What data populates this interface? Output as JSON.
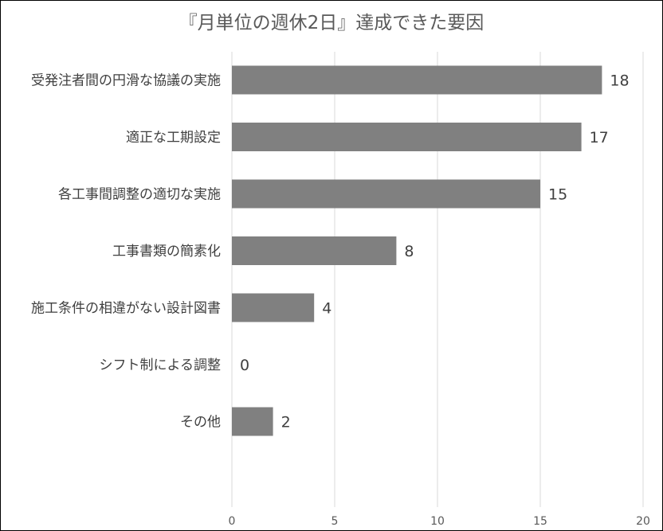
{
  "chart_data": {
    "type": "bar",
    "orientation": "horizontal",
    "title": "『月単位の週休2日』達成できた要因",
    "categories": [
      "受発注者間の円滑な協議の実施",
      "適正な工期設定",
      "各工事間調整の適切な実施",
      "工事書類の簡素化",
      "施工条件の相違がない設計図書",
      "シフト制による調整",
      "その他"
    ],
    "values": [
      18,
      17,
      15,
      8,
      4,
      0,
      2
    ],
    "xlim": [
      0,
      20
    ],
    "xticks": [
      0,
      5,
      10,
      15,
      20
    ],
    "grid": "vertical",
    "legend": "none",
    "data_labels": true,
    "bar_color": "#808080"
  }
}
